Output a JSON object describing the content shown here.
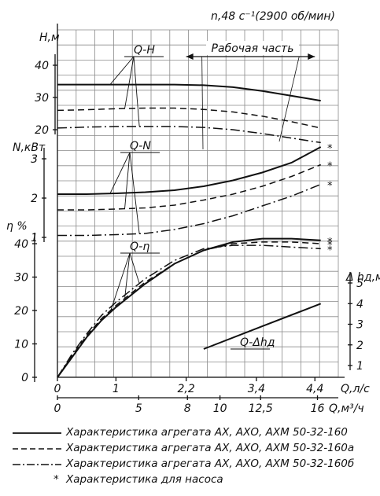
{
  "chart_data": {
    "type": "line",
    "title": "n,48 с⁻¹(2900 об/мин)",
    "working_zone_label": "Рабочая часть",
    "working_zone_q": [
      2.2,
      4.4
    ],
    "x_axis": {
      "primary_label": "Q,л/с",
      "primary_ticks": [
        "0",
        "1",
        "2,2",
        "3,4",
        "4,4"
      ],
      "primary_values": [
        0,
        1,
        2.2,
        3.4,
        4.4
      ],
      "secondary_label": "Q,м³/ч",
      "secondary_ticks": [
        "0",
        "5",
        "8",
        "10",
        "12,5",
        "16"
      ],
      "secondary_values_lps": [
        0,
        1.389,
        2.222,
        2.778,
        3.472,
        4.444
      ],
      "xlim_lps": [
        0,
        4.8
      ]
    },
    "panels": [
      {
        "name": "Q-H",
        "axis_label": "Н,м",
        "ticks": [
          "20",
          "30",
          "40"
        ],
        "ylim": [
          17,
          45
        ],
        "series": [
          {
            "style": "solid",
            "x": [
              0,
              0.5,
              1,
              1.5,
              2,
              2.5,
              3,
              3.5,
              4,
              4.5
            ],
            "y": [
              34,
              34,
              34,
              34,
              34,
              33.8,
              33.2,
              32,
              30.5,
              29
            ]
          },
          {
            "style": "dashed",
            "x": [
              0,
              0.5,
              1,
              1.5,
              2,
              2.5,
              3,
              3.5,
              4,
              4.5
            ],
            "y": [
              26,
              26.2,
              26.5,
              26.7,
              26.7,
              26.3,
              25.5,
              24.2,
              22.5,
              20.5
            ]
          },
          {
            "style": "dash-dot",
            "x": [
              0,
              0.5,
              1,
              1.5,
              2,
              2.5,
              3,
              3.5,
              4,
              4.5
            ],
            "y": [
              20.5,
              20.8,
              21,
              21,
              21,
              20.7,
              20,
              18.8,
              17.4,
              16
            ]
          }
        ]
      },
      {
        "name": "Q-N",
        "axis_label": "N,кВт",
        "ticks": [
          "1",
          "2",
          "3"
        ],
        "ylim": [
          0.5,
          3.5
        ],
        "series": [
          {
            "style": "solid",
            "x": [
              0,
              0.5,
              1,
              1.5,
              2,
              2.5,
              3,
              3.5,
              4,
              4.5
            ],
            "y": [
              2.1,
              2.1,
              2.12,
              2.15,
              2.2,
              2.3,
              2.45,
              2.65,
              2.9,
              3.3
            ]
          },
          {
            "style": "dashed",
            "x": [
              0,
              0.5,
              1,
              1.5,
              2,
              2.5,
              3,
              3.5,
              4,
              4.5
            ],
            "y": [
              1.7,
              1.7,
              1.72,
              1.75,
              1.82,
              1.95,
              2.1,
              2.3,
              2.55,
              2.85
            ]
          },
          {
            "style": "dash-dot",
            "x": [
              0,
              0.5,
              1,
              1.5,
              2,
              2.5,
              3,
              3.5,
              4,
              4.5
            ],
            "y": [
              1.05,
              1.05,
              1.07,
              1.1,
              1.2,
              1.35,
              1.55,
              1.8,
              2.05,
              2.35
            ]
          }
        ],
        "pump_marks": [
          "*",
          "*",
          "*"
        ]
      },
      {
        "name": "Q-η",
        "axis_label": "η %",
        "ticks": [
          "0",
          "10",
          "20",
          "30",
          "40"
        ],
        "ylim": [
          0,
          42
        ],
        "series": [
          {
            "style": "solid",
            "x": [
              0,
              0.25,
              0.5,
              0.75,
              1,
              1.5,
              2,
              2.5,
              3,
              3.5,
              4,
              4.5
            ],
            "y": [
              0,
              6,
              12,
              17,
              21,
              28,
              34,
              38,
              40.5,
              41.5,
              41.5,
              41
            ]
          },
          {
            "style": "dashed",
            "x": [
              0,
              0.25,
              0.5,
              0.75,
              1,
              1.5,
              2,
              2.5,
              3,
              3.5,
              4,
              4.5
            ],
            "y": [
              0,
              6.5,
              12.5,
              17.5,
              21.5,
              28.5,
              34,
              38,
              40,
              40.5,
              40.5,
              40
            ]
          },
          {
            "style": "dash-dot",
            "x": [
              0,
              0.25,
              0.5,
              0.75,
              1,
              1.5,
              2,
              2.5,
              3,
              3.5,
              4,
              4.5
            ],
            "y": [
              0,
              7,
              13,
              18.5,
              22.5,
              29.5,
              35,
              38.5,
              39.5,
              39.5,
              39,
              38.5
            ]
          }
        ],
        "pump_marks": [
          "*",
          "*",
          "*"
        ]
      },
      {
        "name": "Q-Δhд",
        "axis_label": "Δ hд,м",
        "ticks": [
          "1",
          "2",
          "3",
          "4",
          "5"
        ],
        "ylim": [
          0.5,
          5.5
        ],
        "series": [
          {
            "style": "solid",
            "x": [
              2.5,
              3.5,
              4.5
            ],
            "y": [
              1.8,
              2.9,
              4
            ]
          }
        ]
      }
    ],
    "legend": [
      {
        "style": "solid",
        "label": "Характеристика агрегата АХ, АХО, АХМ 50-32-160"
      },
      {
        "style": "dashed",
        "label": "Характеристика агрегата АХ, АХО, АХМ 50-32-160а"
      },
      {
        "style": "dash-dot",
        "label": "Характеристика агрегата АХ, АХО, АХМ 50-32-160б"
      },
      {
        "style": "star",
        "label": "Характеристика для насоса"
      }
    ]
  }
}
